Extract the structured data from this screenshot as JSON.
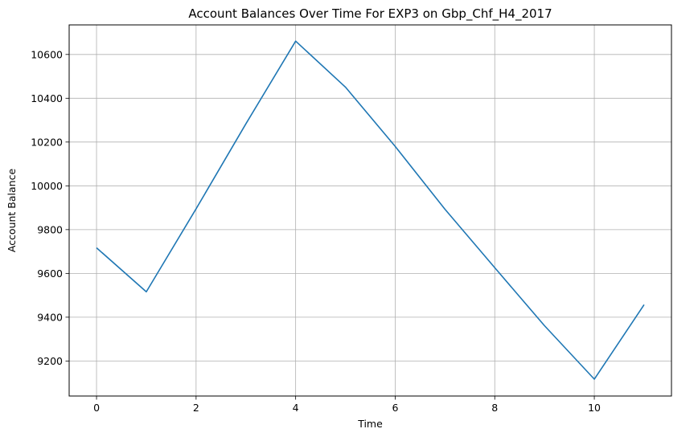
{
  "chart_data": {
    "type": "line",
    "title": "Account Balances Over Time For EXP3 on Gbp_Chf_H4_2017",
    "xlabel": "Time",
    "ylabel": "Account Balance",
    "x": [
      0,
      1,
      2,
      3,
      4,
      5,
      6,
      7,
      8,
      9,
      10,
      11
    ],
    "series": [
      {
        "values": [
          9717,
          9516,
          9895,
          10283,
          10661,
          10451,
          10180,
          9893,
          9626,
          9361,
          9117,
          9457
        ],
        "color": "#1f77b4"
      }
    ],
    "xlim": [
      -0.55,
      11.55
    ],
    "ylim": [
      9040,
      10735
    ],
    "xticks": [
      0,
      2,
      4,
      6,
      8,
      10
    ],
    "yticks": [
      9200,
      9400,
      9600,
      9800,
      10000,
      10200,
      10400,
      10600
    ],
    "grid": true
  }
}
